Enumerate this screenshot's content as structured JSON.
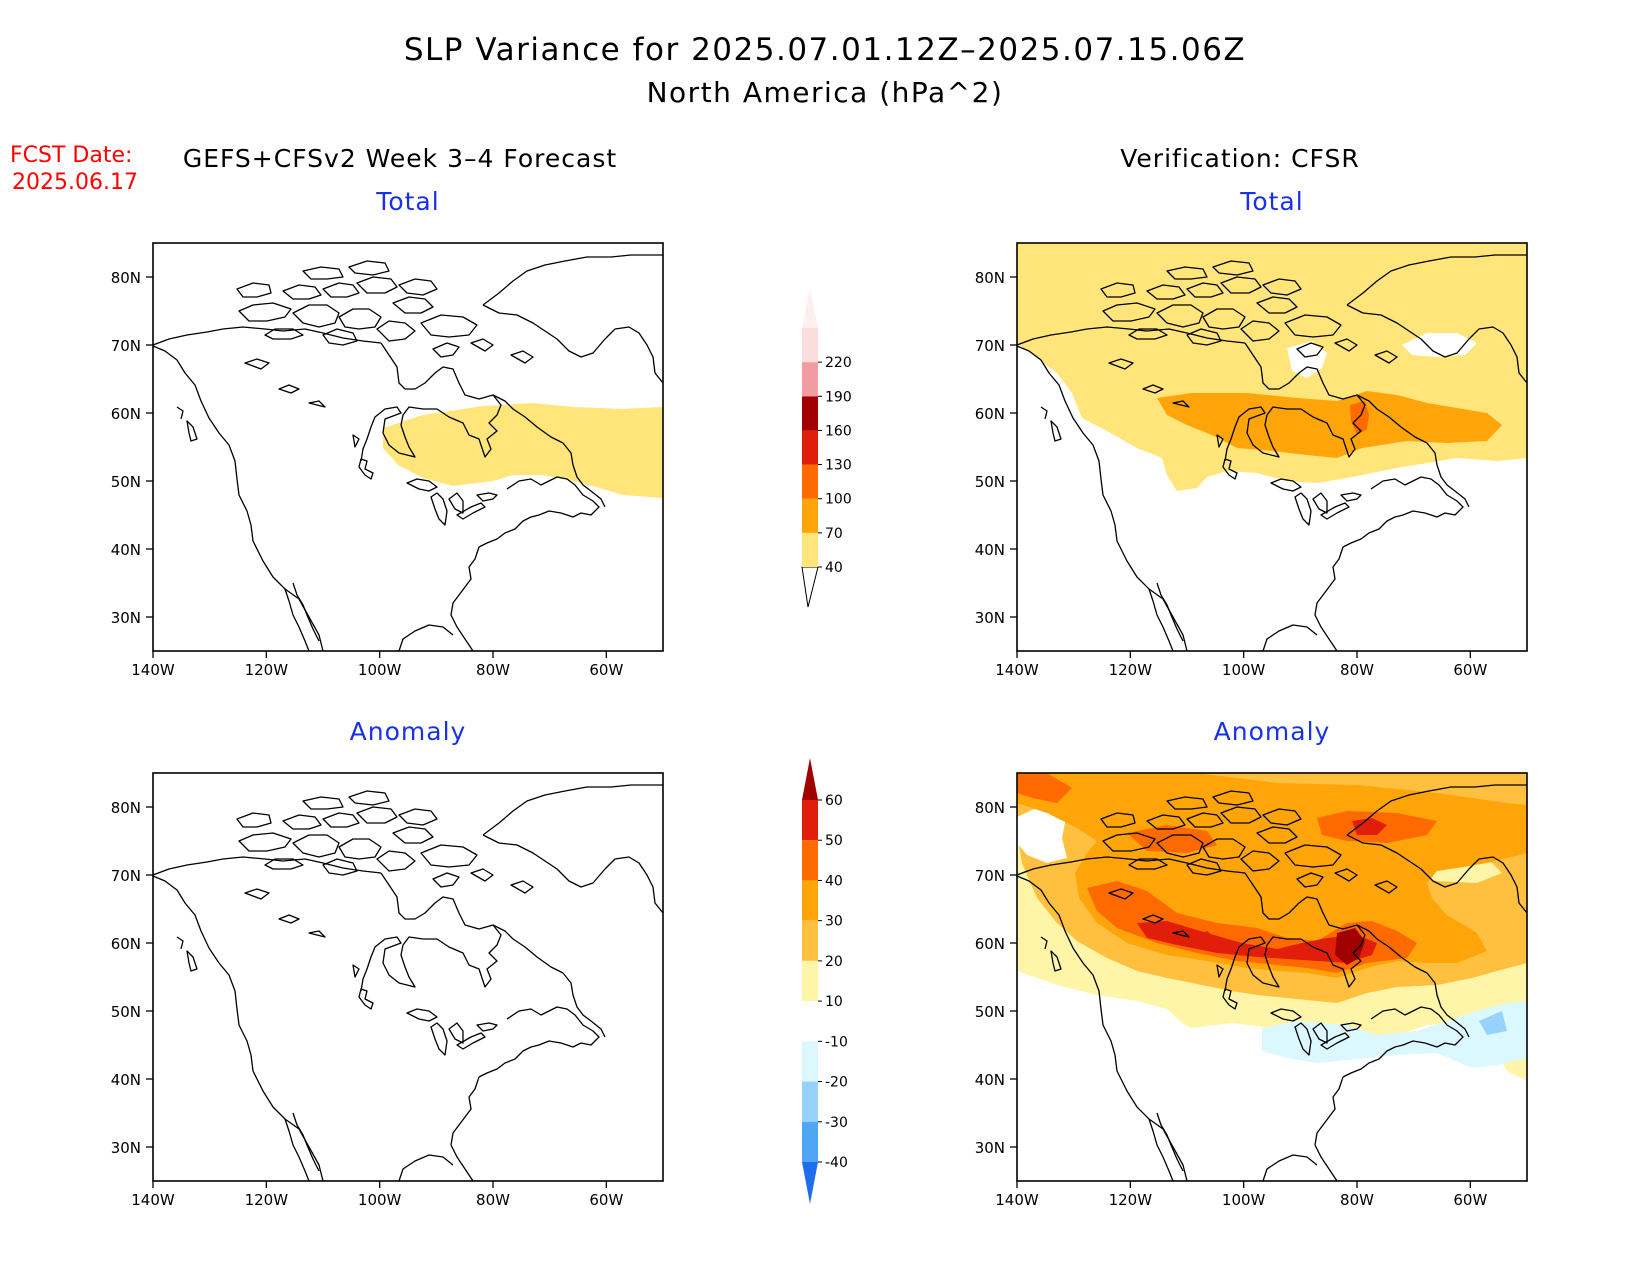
{
  "title": {
    "line1": "SLP Variance for 2025.07.01.12Z–2025.07.15.06Z",
    "line2": "North America (hPa^2)"
  },
  "fcst_date": {
    "label": "FCST Date:",
    "value": "2025.06.17"
  },
  "column_headers": {
    "forecast": "GEFS+CFSv2 Week 3–4 Forecast",
    "verification": "Verification: CFSR"
  },
  "panels": [
    {
      "id": "fcst-total",
      "title": "Total"
    },
    {
      "id": "verif-total",
      "title": "Total"
    },
    {
      "id": "fcst-anomaly",
      "title": "Anomaly"
    },
    {
      "id": "verif-anomaly",
      "title": "Anomaly"
    }
  ],
  "axes": {
    "lat_ticks": [
      "80N",
      "70N",
      "60N",
      "50N",
      "40N",
      "30N"
    ],
    "lon_ticks": [
      "140W",
      "120W",
      "100W",
      "80W",
      "60W"
    ],
    "lon_range": [
      -140,
      -50
    ],
    "lat_range": [
      25,
      85
    ]
  },
  "colorbars": {
    "total": {
      "levels": [
        "40",
        "70",
        "100",
        "130",
        "160",
        "190",
        "220"
      ],
      "colors": [
        "#ffe57a",
        "#ffa50a",
        "#ff6a00",
        "#e01e0a",
        "#a00000",
        "#f09ca0",
        "#fcdcdc"
      ]
    },
    "anomaly": {
      "levels": [
        "60",
        "50",
        "40",
        "30",
        "20",
        "10",
        "-10",
        "-20",
        "-30",
        "-40"
      ],
      "colors": [
        "#a00000",
        "#e01e0a",
        "#ff6a00",
        "#ffa50a",
        "#ffc040",
        "#fff5a8",
        "#ffffff",
        "#dcf8ff",
        "#96d2fa",
        "#50a5f5",
        "#1e6eeb"
      ]
    }
  },
  "colors": {
    "title_text": "#000000",
    "panel_title": "#1a32e6",
    "fcst_date": "#ff0000"
  }
}
